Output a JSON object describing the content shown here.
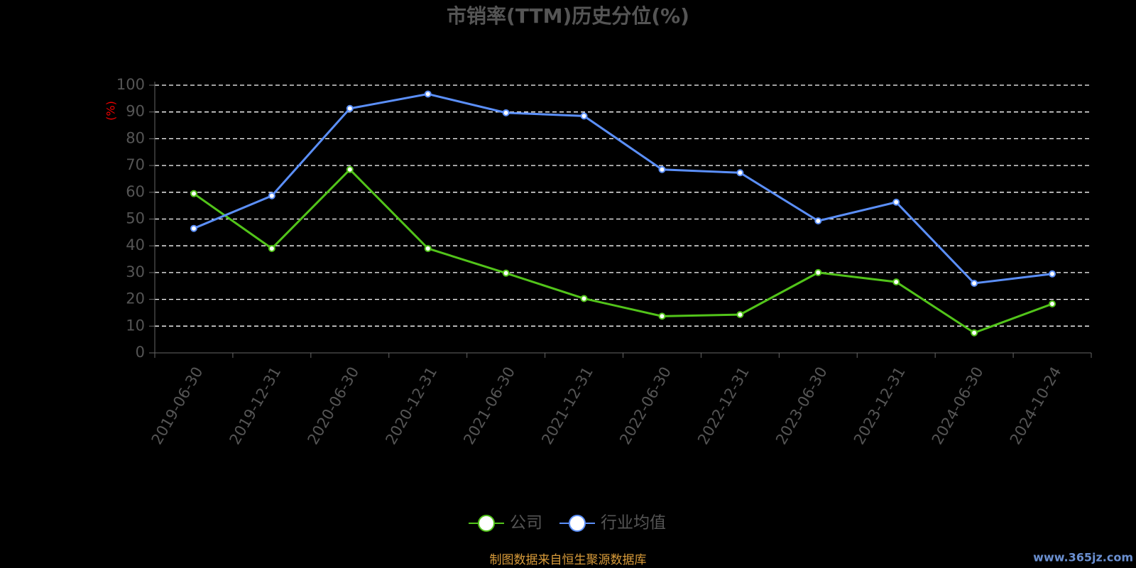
{
  "chart_data": {
    "type": "line",
    "title": "市销率(TTM)历史分位(%)",
    "y_label": "(%)",
    "categories": [
      "2019-06-30",
      "2019-12-31",
      "2020-06-30",
      "2020-12-31",
      "2021-06-30",
      "2021-12-31",
      "2022-06-30",
      "2022-12-31",
      "2023-06-30",
      "2023-12-31",
      "2024-06-30",
      "2024-10-24"
    ],
    "series": [
      {
        "name": "公司",
        "color": "#52c41a",
        "values": [
          59.5,
          39,
          68.5,
          39,
          29.8,
          20.3,
          13.7,
          14.3,
          30,
          26.5,
          7.5,
          18.3
        ]
      },
      {
        "name": "行业均值",
        "color": "#5b8ff9",
        "values": [
          46.5,
          58.7,
          91.3,
          96.7,
          89.7,
          88.5,
          68.5,
          67.3,
          49.3,
          56.3,
          26,
          29.5
        ]
      }
    ],
    "ylim": [
      0,
      100
    ],
    "yticks": [
      0,
      10,
      20,
      30,
      40,
      50,
      60,
      70,
      80,
      90,
      100
    ],
    "grid": true,
    "legend": "bottom",
    "source": "制图数据来自恒生聚源数据库",
    "watermark": "www.365jz.com"
  }
}
